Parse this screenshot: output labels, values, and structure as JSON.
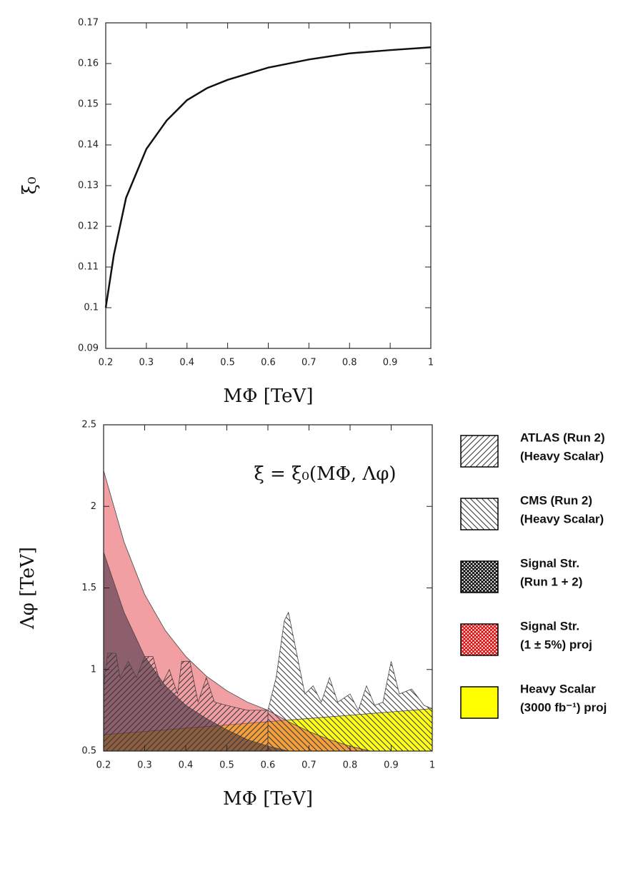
{
  "chart_data": [
    {
      "type": "line",
      "x_label": "MΦ [TeV]",
      "y_label": "ξ₀",
      "xlim": [
        0.2,
        1
      ],
      "ylim": [
        0.09,
        0.17
      ],
      "xticks": [
        0.2,
        0.3,
        0.4,
        0.5,
        0.6,
        0.7,
        0.8,
        0.9,
        1
      ],
      "yticks": [
        0.09,
        0.1,
        0.11,
        0.12,
        0.13,
        0.14,
        0.15,
        0.16,
        0.17
      ],
      "series": [
        {
          "color": "#111111",
          "x": [
            0.2,
            0.22,
            0.25,
            0.3,
            0.35,
            0.4,
            0.45,
            0.5,
            0.6,
            0.7,
            0.8,
            0.9,
            1
          ],
          "values": [
            0.1,
            0.113,
            0.127,
            0.139,
            0.146,
            0.151,
            0.154,
            0.156,
            0.159,
            0.161,
            0.1625,
            0.1633,
            0.164
          ]
        }
      ]
    },
    {
      "type": "area",
      "x_label": "MΦ [TeV]",
      "y_label": "Λφ [TeV]",
      "annotation": "ξ = ξ₀(MΦ, Λφ)",
      "xlim": [
        0.2,
        1
      ],
      "ylim": [
        0.5,
        2.5
      ],
      "xticks": [
        0.2,
        0.3,
        0.4,
        0.5,
        0.6,
        0.7,
        0.8,
        0.9,
        1
      ],
      "yticks": [
        0.5,
        1,
        1.5,
        2,
        2.5
      ],
      "series": [
        {
          "name": [
            "ATLAS (Run 2)",
            " (Heavy Scalar)"
          ],
          "color": "#555555",
          "pattern": "hatch-ne",
          "x": [
            0.2,
            0.21,
            0.23,
            0.24,
            0.26,
            0.28,
            0.3,
            0.32,
            0.34,
            0.36,
            0.38,
            0.39,
            0.41,
            0.43,
            0.45,
            0.47,
            0.5,
            0.55,
            0.6
          ],
          "values": [
            0.9,
            1.1,
            1.1,
            0.95,
            1.05,
            0.95,
            1.08,
            1.08,
            0.9,
            1.0,
            0.85,
            1.05,
            1.05,
            0.8,
            0.95,
            0.8,
            0.78,
            0.75,
            0.75
          ]
        },
        {
          "name": [
            "CMS  (Run 2)",
            "(Heavy Scalar)"
          ],
          "color": "#555555",
          "pattern": "hatch-nw",
          "x": [
            0.6,
            0.62,
            0.64,
            0.65,
            0.67,
            0.69,
            0.71,
            0.73,
            0.75,
            0.77,
            0.8,
            0.82,
            0.84,
            0.86,
            0.88,
            0.9,
            0.92,
            0.95,
            0.98,
            1
          ],
          "values": [
            0.75,
            0.95,
            1.3,
            1.35,
            1.1,
            0.85,
            0.9,
            0.8,
            0.95,
            0.8,
            0.85,
            0.75,
            0.9,
            0.78,
            0.8,
            1.05,
            0.85,
            0.88,
            0.78,
            0.76
          ]
        },
        {
          "name": [
            "Signal Str.",
            "(Run 1 + 2)"
          ],
          "color": "#3a2a40",
          "pattern": "cross-black",
          "x": [
            0.2,
            0.25,
            0.3,
            0.35,
            0.4,
            0.45,
            0.5,
            0.55,
            0.6,
            0.65
          ],
          "values": [
            1.72,
            1.35,
            1.08,
            0.9,
            0.78,
            0.7,
            0.63,
            0.57,
            0.53,
            0.5
          ]
        },
        {
          "name": [
            "Signal Str.",
            " (1 ±  5%) proj"
          ],
          "color": "#e8505a",
          "pattern": "cross-red",
          "x": [
            0.2,
            0.25,
            0.3,
            0.35,
            0.4,
            0.45,
            0.5,
            0.55,
            0.6,
            0.65,
            0.7,
            0.75,
            0.8,
            0.85
          ],
          "values": [
            2.22,
            1.78,
            1.46,
            1.24,
            1.08,
            0.96,
            0.87,
            0.8,
            0.75,
            0.68,
            0.62,
            0.57,
            0.53,
            0.5
          ]
        },
        {
          "name": [
            " Heavy Scalar",
            "(3000 fb⁻¹) proj"
          ],
          "color": "#ffff00",
          "x": [
            0.2,
            0.4,
            0.6,
            0.7,
            0.8,
            0.9,
            1
          ],
          "values": [
            0.6,
            0.64,
            0.68,
            0.7,
            0.72,
            0.74,
            0.76
          ]
        }
      ]
    }
  ]
}
